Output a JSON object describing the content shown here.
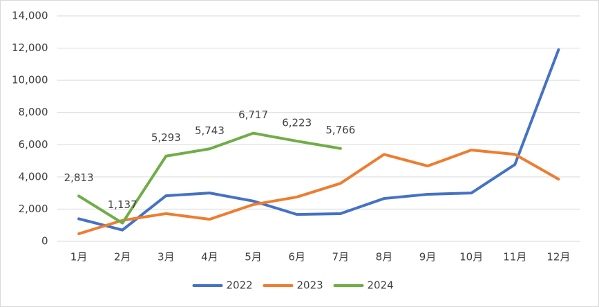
{
  "chart_data": {
    "type": "line",
    "categories": [
      "1月",
      "2月",
      "3月",
      "4月",
      "5月",
      "6月",
      "7月",
      "8月",
      "9月",
      "10月",
      "11月",
      "12月"
    ],
    "series": [
      {
        "name": "2022",
        "color": "#4472c4",
        "values": [
          1400,
          700,
          2830,
          3000,
          2500,
          1670,
          1720,
          2660,
          2920,
          3000,
          4770,
          11900
        ]
      },
      {
        "name": "2023",
        "color": "#ed7d31",
        "values": [
          470,
          1300,
          1720,
          1370,
          2280,
          2750,
          3600,
          5400,
          4680,
          5670,
          5400,
          3860
        ]
      },
      {
        "name": "2024",
        "color": "#70ad47",
        "values": [
          2813,
          1137,
          5293,
          5743,
          6717,
          6223,
          5766,
          null,
          null,
          null,
          null,
          null
        ],
        "value_labels": [
          "2,813",
          "1,137",
          "5,293",
          "5,743",
          "6,717",
          "6,223",
          "5,766",
          null,
          null,
          null,
          null,
          null
        ]
      }
    ],
    "ylim": [
      0,
      14000
    ],
    "yticks": [
      0,
      {
        "value": 2000,
        "label": "2,000"
      },
      {
        "value": 4000,
        "label": "4,000"
      },
      {
        "value": 6000,
        "label": "6,000"
      },
      {
        "value": 8000,
        "label": "8,000"
      },
      {
        "value": 10000,
        "label": "10,000"
      },
      {
        "value": 12000,
        "label": "12,000"
      },
      {
        "value": 14000,
        "label": "14,000"
      }
    ],
    "grid": true,
    "legend": "bottom"
  }
}
